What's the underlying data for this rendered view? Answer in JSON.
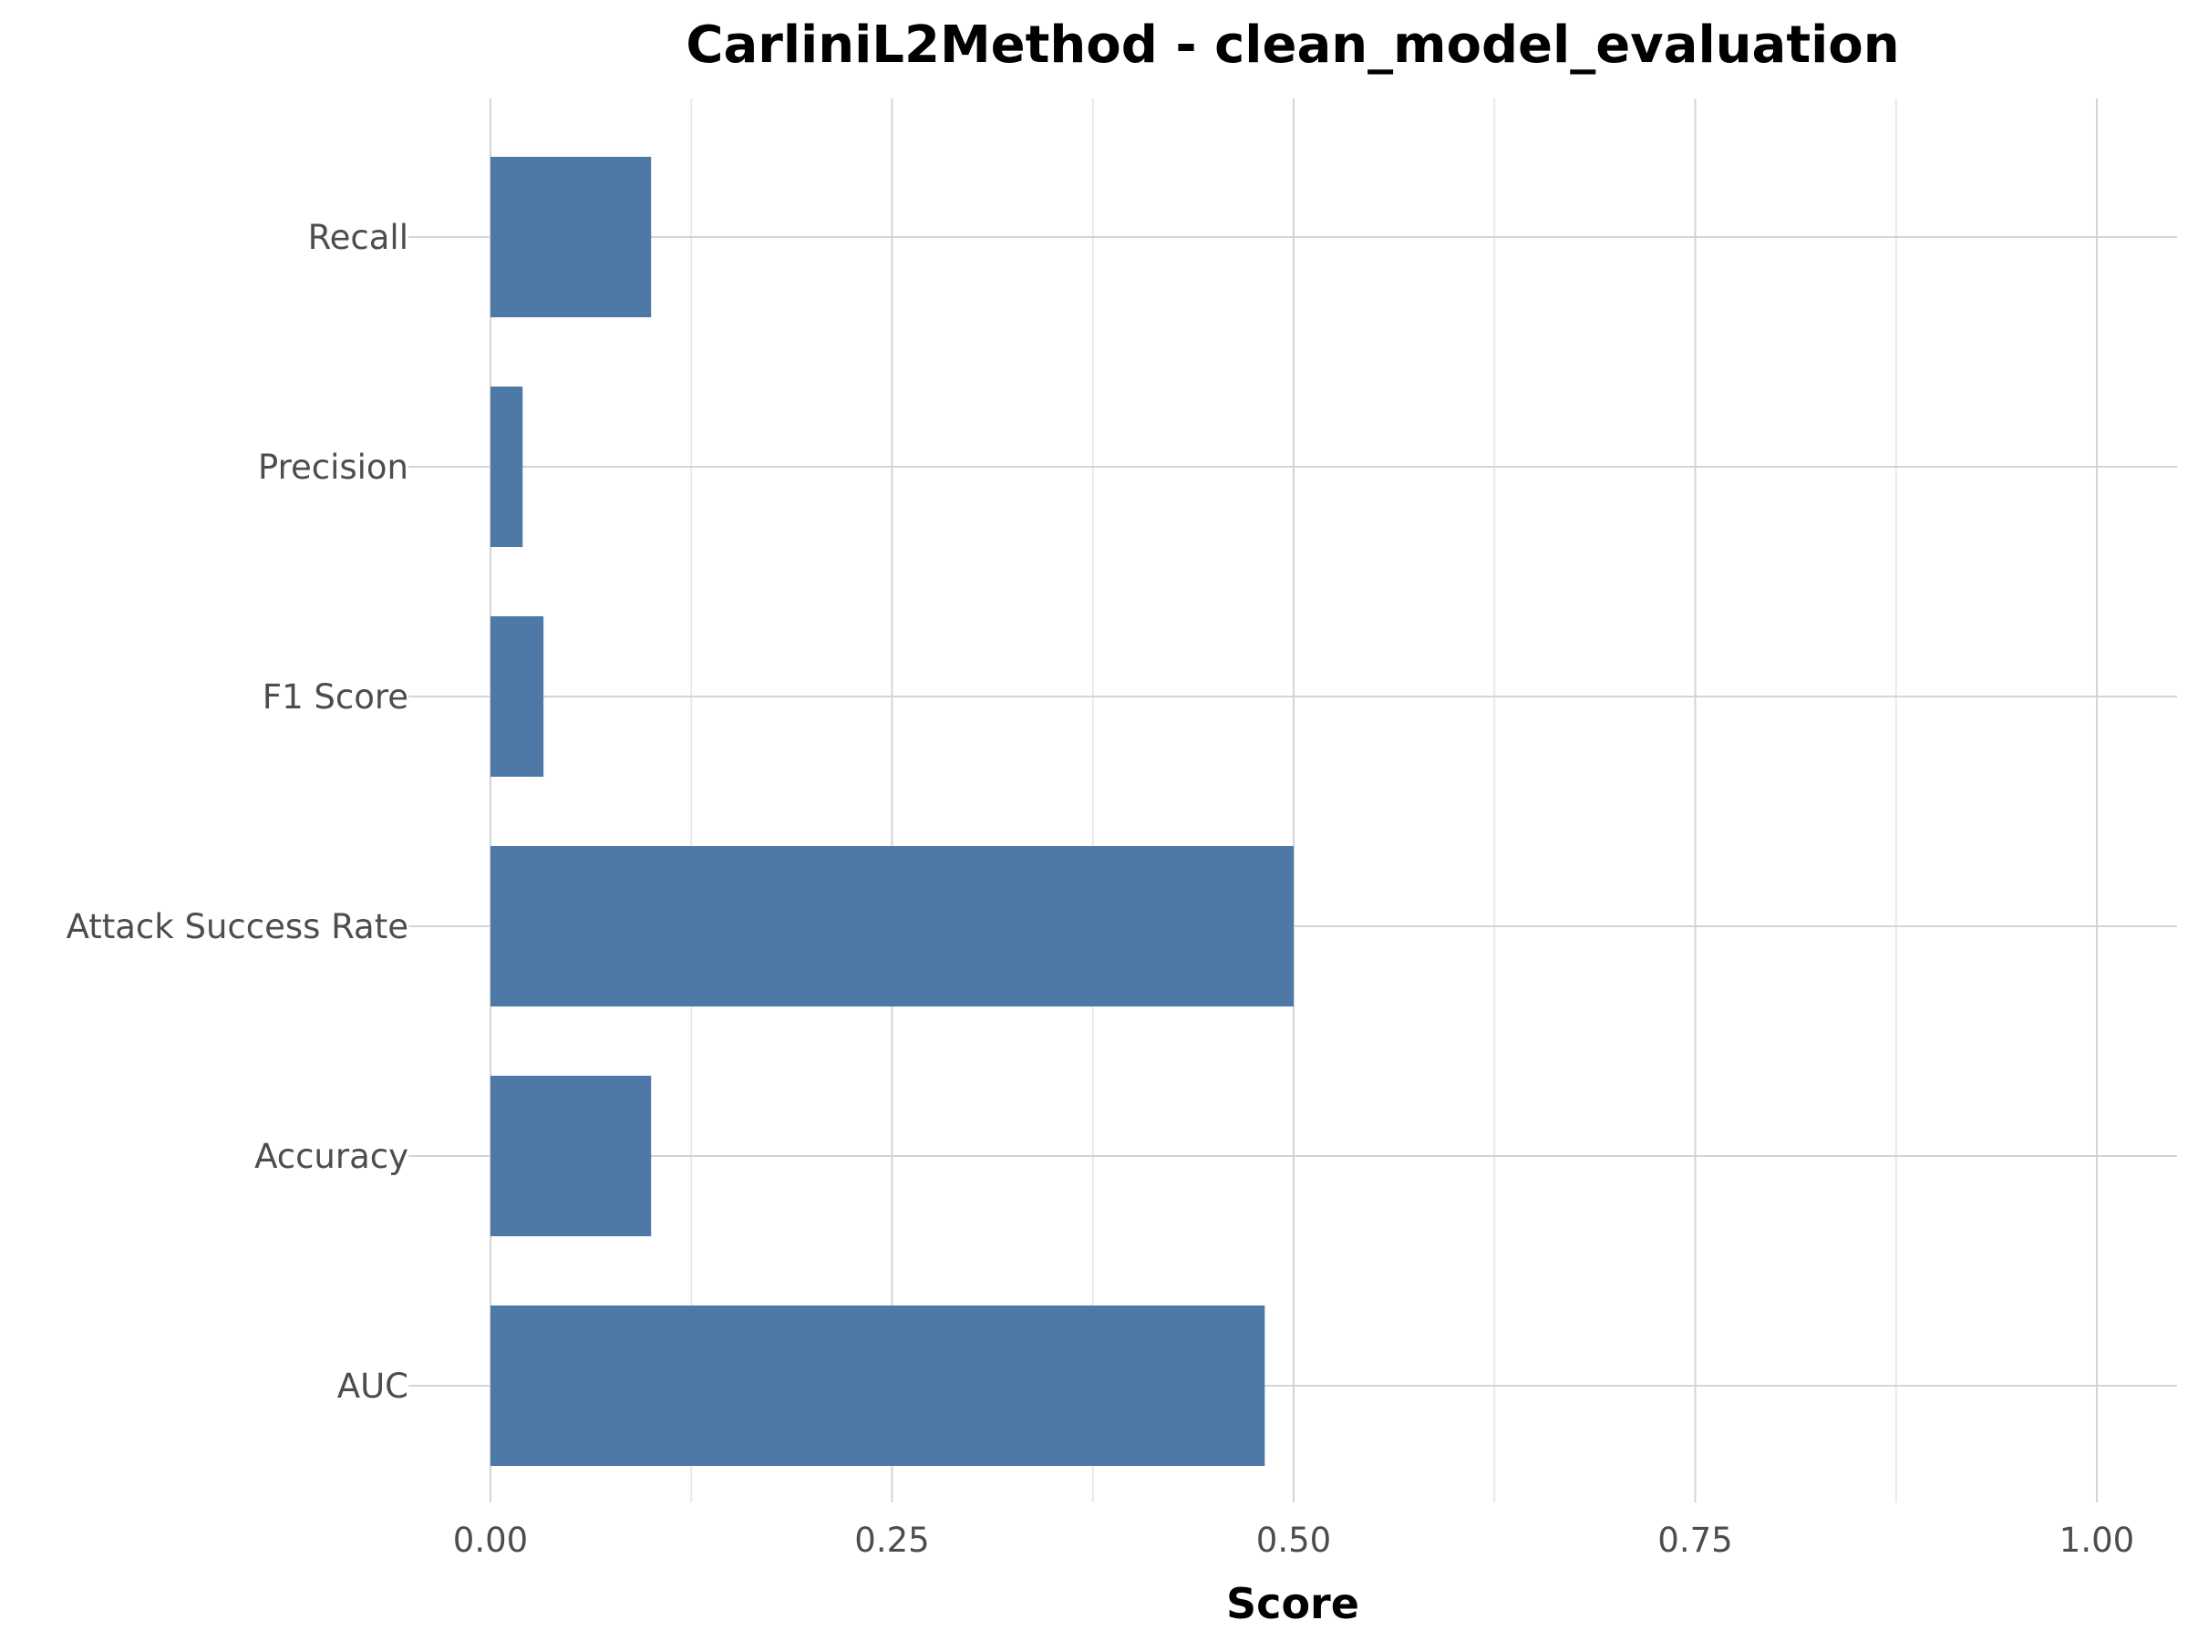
{
  "chart_data": {
    "type": "bar",
    "orientation": "horizontal",
    "title": "CarliniL2Method - clean_model_evaluation",
    "xlabel": "Score",
    "ylabel": "",
    "categories": [
      "AUC",
      "Accuracy",
      "Attack Success Rate",
      "F1 Score",
      "Precision",
      "Recall"
    ],
    "values": [
      0.482,
      0.1,
      0.5,
      0.033,
      0.02,
      0.1
    ],
    "xlim": [
      0,
      1.05
    ],
    "xticks": [
      0.0,
      0.25,
      0.5,
      0.75,
      1.0
    ],
    "xtick_labels": [
      "0.00",
      "0.25",
      "0.50",
      "0.75",
      "1.00"
    ],
    "grid": true,
    "legend": "none",
    "bar_color": "#4e79a7",
    "grid_major_color": "#d4d4d4",
    "grid_minor_color": "#e9e9e9",
    "tick_label_color": "#4d4d4d"
  }
}
